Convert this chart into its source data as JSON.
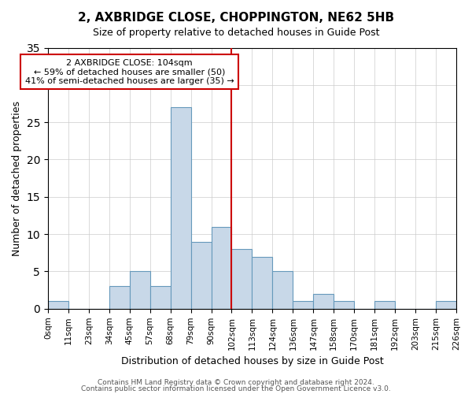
{
  "title": "2, AXBRIDGE CLOSE, CHOPPINGTON, NE62 5HB",
  "subtitle": "Size of property relative to detached houses in Guide Post",
  "xlabel": "Distribution of detached houses by size in Guide Post",
  "ylabel": "Number of detached properties",
  "footer_line1": "Contains HM Land Registry data © Crown copyright and database right 2024.",
  "footer_line2": "Contains public sector information licensed under the Open Government Licence v3.0.",
  "bin_labels": [
    "0sqm",
    "11sqm",
    "23sqm",
    "34sqm",
    "45sqm",
    "57sqm",
    "68sqm",
    "79sqm",
    "90sqm",
    "102sqm",
    "113sqm",
    "124sqm",
    "136sqm",
    "147sqm",
    "158sqm",
    "170sqm",
    "181sqm",
    "192sqm",
    "203sqm",
    "215sqm",
    "226sqm"
  ],
  "bar_heights": [
    1,
    0,
    0,
    3,
    5,
    3,
    27,
    9,
    11,
    8,
    7,
    5,
    1,
    2,
    1,
    0,
    1,
    0,
    0,
    1
  ],
  "bar_color": "#c8d8e8",
  "bar_edge_color": "#6699bb",
  "annotation_box_text": "2 AXBRIDGE CLOSE: 104sqm\n← 59% of detached houses are smaller (50)\n41% of semi-detached houses are larger (35) →",
  "annotation_box_color": "#cc0000",
  "vline_x": 9,
  "vline_color": "#cc0000",
  "ylim": [
    0,
    35
  ],
  "yticks": [
    0,
    5,
    10,
    15,
    20,
    25,
    30,
    35
  ],
  "background_color": "#ffffff",
  "grid_color": "#cccccc"
}
